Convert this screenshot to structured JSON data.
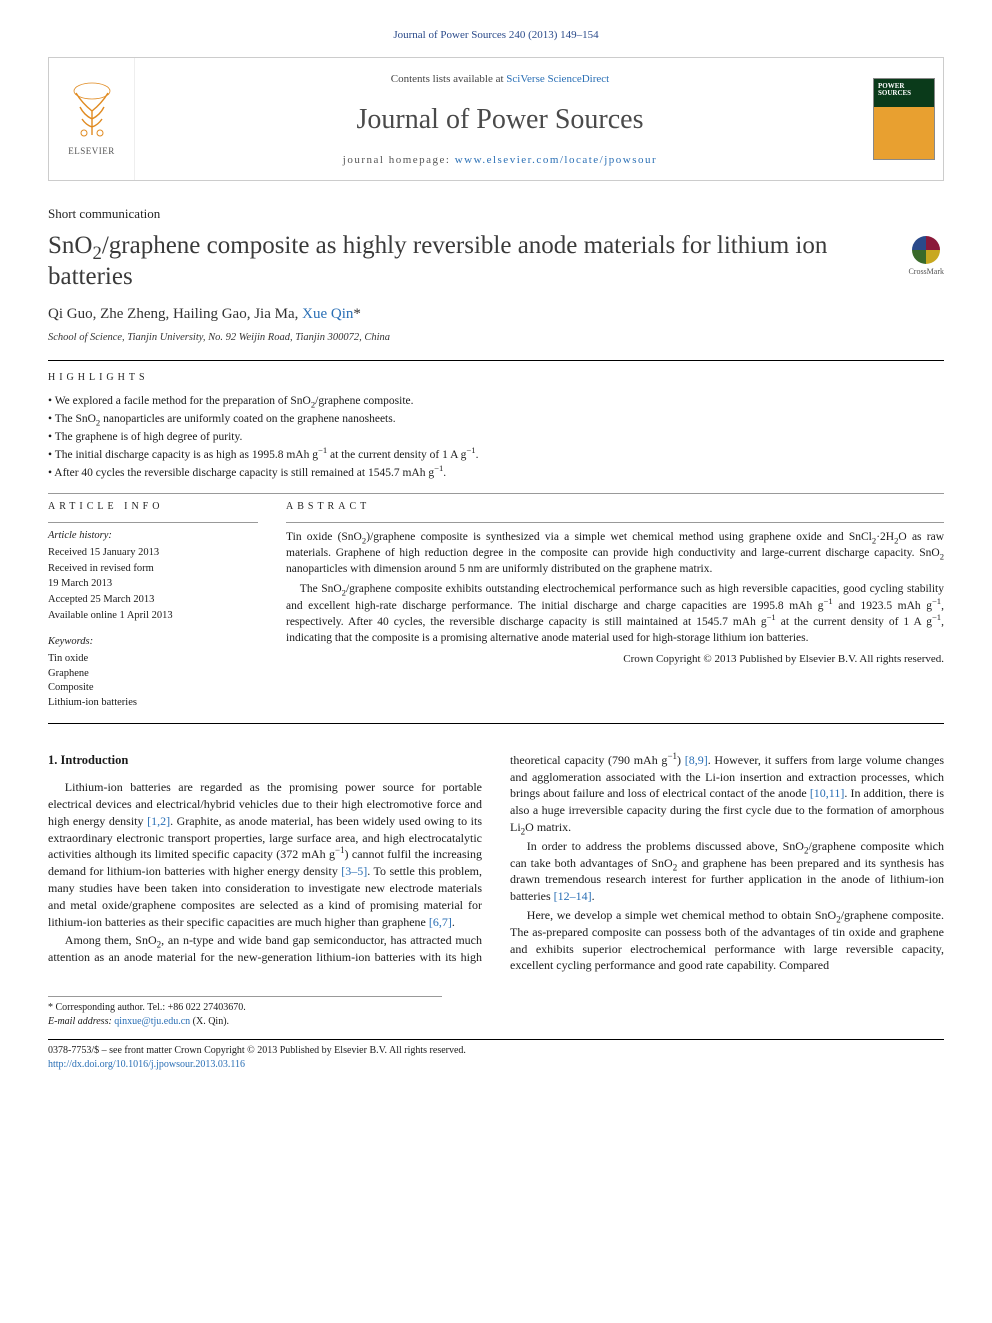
{
  "citation": "Journal of Power Sources 240 (2013) 149–154",
  "masthead": {
    "publisher_label": "ELSEVIER",
    "contents_prefix": "Contents lists available at ",
    "contents_link": "SciVerse ScienceDirect",
    "journal_name": "Journal of Power Sources",
    "homepage_prefix": "journal homepage: ",
    "homepage_url": "www.elsevier.com/locate/jpowsour",
    "cover_title": "POWER SOURCES"
  },
  "article_type": "Short communication",
  "title_html": "SnO<sub>2</sub>/graphene composite as highly reversible anode materials for lithium ion batteries",
  "crossmark_label": "CrossMark",
  "authors_html": "Qi Guo, Zhe Zheng, Hailing Gao, Jia Ma, <a href='#' data-name='author-link-qin' data-interactable='true'>Xue Qin</a>*",
  "affiliation": "School of Science, Tianjin University, No. 92 Weijin Road, Tianjin 300072, China",
  "highlights_label": "HIGHLIGHTS",
  "highlights": [
    "We explored a facile method for the preparation of SnO<sub>2</sub>/graphene composite.",
    "The SnO<sub>2</sub> nanoparticles are uniformly coated on the graphene nanosheets.",
    "The graphene is of high degree of purity.",
    "The initial discharge capacity is as high as 1995.8 mAh g<sup>−1</sup> at the current density of 1 A g<sup>−1</sup>.",
    "After 40 cycles the reversible discharge capacity is still remained at 1545.7 mAh g<sup>−1</sup>."
  ],
  "article_info_label": "ARTICLE INFO",
  "abstract_label": "ABSTRACT",
  "history": {
    "head": "Article history:",
    "lines": [
      "Received 15 January 2013",
      "Received in revised form",
      "19 March 2013",
      "Accepted 25 March 2013",
      "Available online 1 April 2013"
    ]
  },
  "keywords_head": "Keywords:",
  "keywords": [
    "Tin oxide",
    "Graphene",
    "Composite",
    "Lithium-ion batteries"
  ],
  "abstract_paras": [
    "Tin oxide (SnO<sub>2</sub>)/graphene composite is synthesized via a simple wet chemical method using graphene oxide and SnCl<sub>2</sub>·2H<sub>2</sub>O as raw materials. Graphene of high reduction degree in the composite can provide high conductivity and large-current discharge capacity. SnO<sub>2</sub> nanoparticles with dimension around 5 nm are uniformly distributed on the graphene matrix.",
    "The SnO<sub>2</sub>/graphene composite exhibits outstanding electrochemical performance such as high reversible capacities, good cycling stability and excellent high-rate discharge performance. The initial discharge and charge capacities are 1995.8 mAh g<sup>−1</sup> and 1923.5 mAh g<sup>−1</sup>, respectively. After 40 cycles, the reversible discharge capacity is still maintained at 1545.7 mAh g<sup>−1</sup> at the current density of 1 A g<sup>−1</sup>, indicating that the composite is a promising alternative anode material used for high-storage lithium ion batteries."
  ],
  "abstract_copyright": "Crown Copyright © 2013 Published by Elsevier B.V. All rights reserved.",
  "section1_heading": "1. Introduction",
  "body_paras": [
    "Lithium-ion batteries are regarded as the promising power source for portable electrical devices and electrical/hybrid vehicles due to their high electromotive force and high energy density <a href='#' data-name='ref-link-1-2' data-interactable='true'>[1,2]</a>. Graphite, as anode material, has been widely used owing to its extraordinary electronic transport properties, large surface area, and high electrocatalytic activities although its limited specific capacity (372 mAh g<sup>−1</sup>) cannot fulfil the increasing demand for lithium-ion batteries with higher energy density <a href='#' data-name='ref-link-3-5' data-interactable='true'>[3–5]</a>. To settle this problem, many studies have been taken into consideration to investigate new electrode materials and metal oxide/graphene composites are selected as a kind of promising material for lithium-ion batteries as their specific capacities are much higher than graphene <a href='#' data-name='ref-link-6-7' data-interactable='true'>[6,7]</a>.",
    "Among them, SnO<sub>2</sub>, an n-type and wide band gap semiconductor, has attracted much attention as an anode material for the new-generation lithium-ion batteries with its high theoretical capacity (790 mAh g<sup>−1</sup>) <a href='#' data-name='ref-link-8-9' data-interactable='true'>[8,9]</a>. However, it suffers from large volume changes and agglomeration associated with the Li-ion insertion and extraction processes, which brings about failure and loss of electrical contact of the anode <a href='#' data-name='ref-link-10-11' data-interactable='true'>[10,11]</a>. In addition, there is also a huge irreversible capacity during the first cycle due to the formation of amorphous Li<sub>2</sub>O matrix.",
    "In order to address the problems discussed above, SnO<sub>2</sub>/graphene composite which can take both advantages of SnO<sub>2</sub> and graphene has been prepared and its synthesis has drawn tremendous research interest for further application in the anode of lithium-ion batteries <a href='#' data-name='ref-link-12-14' data-interactable='true'>[12–14]</a>.",
    "Here, we develop a simple wet chemical method to obtain SnO<sub>2</sub>/graphene composite. The as-prepared composite can possess both of the advantages of tin oxide and graphene and exhibits superior electrochemical performance with large reversible capacity, excellent cycling performance and good rate capability. Compared"
  ],
  "footnote_corr": "* Corresponding author. Tel.: +86 022 27403670.",
  "footnote_email_label": "E-mail address: ",
  "footnote_email": "qinxue@tju.edu.cn",
  "footnote_email_suffix": " (X. Qin).",
  "bottom": {
    "line1": "0378-7753/$ – see front matter Crown Copyright © 2013 Published by Elsevier B.V. All rights reserved.",
    "doi": "http://dx.doi.org/10.1016/j.jpowsour.2013.03.116"
  },
  "colors": {
    "link": "#2a6fb5",
    "heading": "#3a3a3a",
    "rule": "#000000"
  }
}
